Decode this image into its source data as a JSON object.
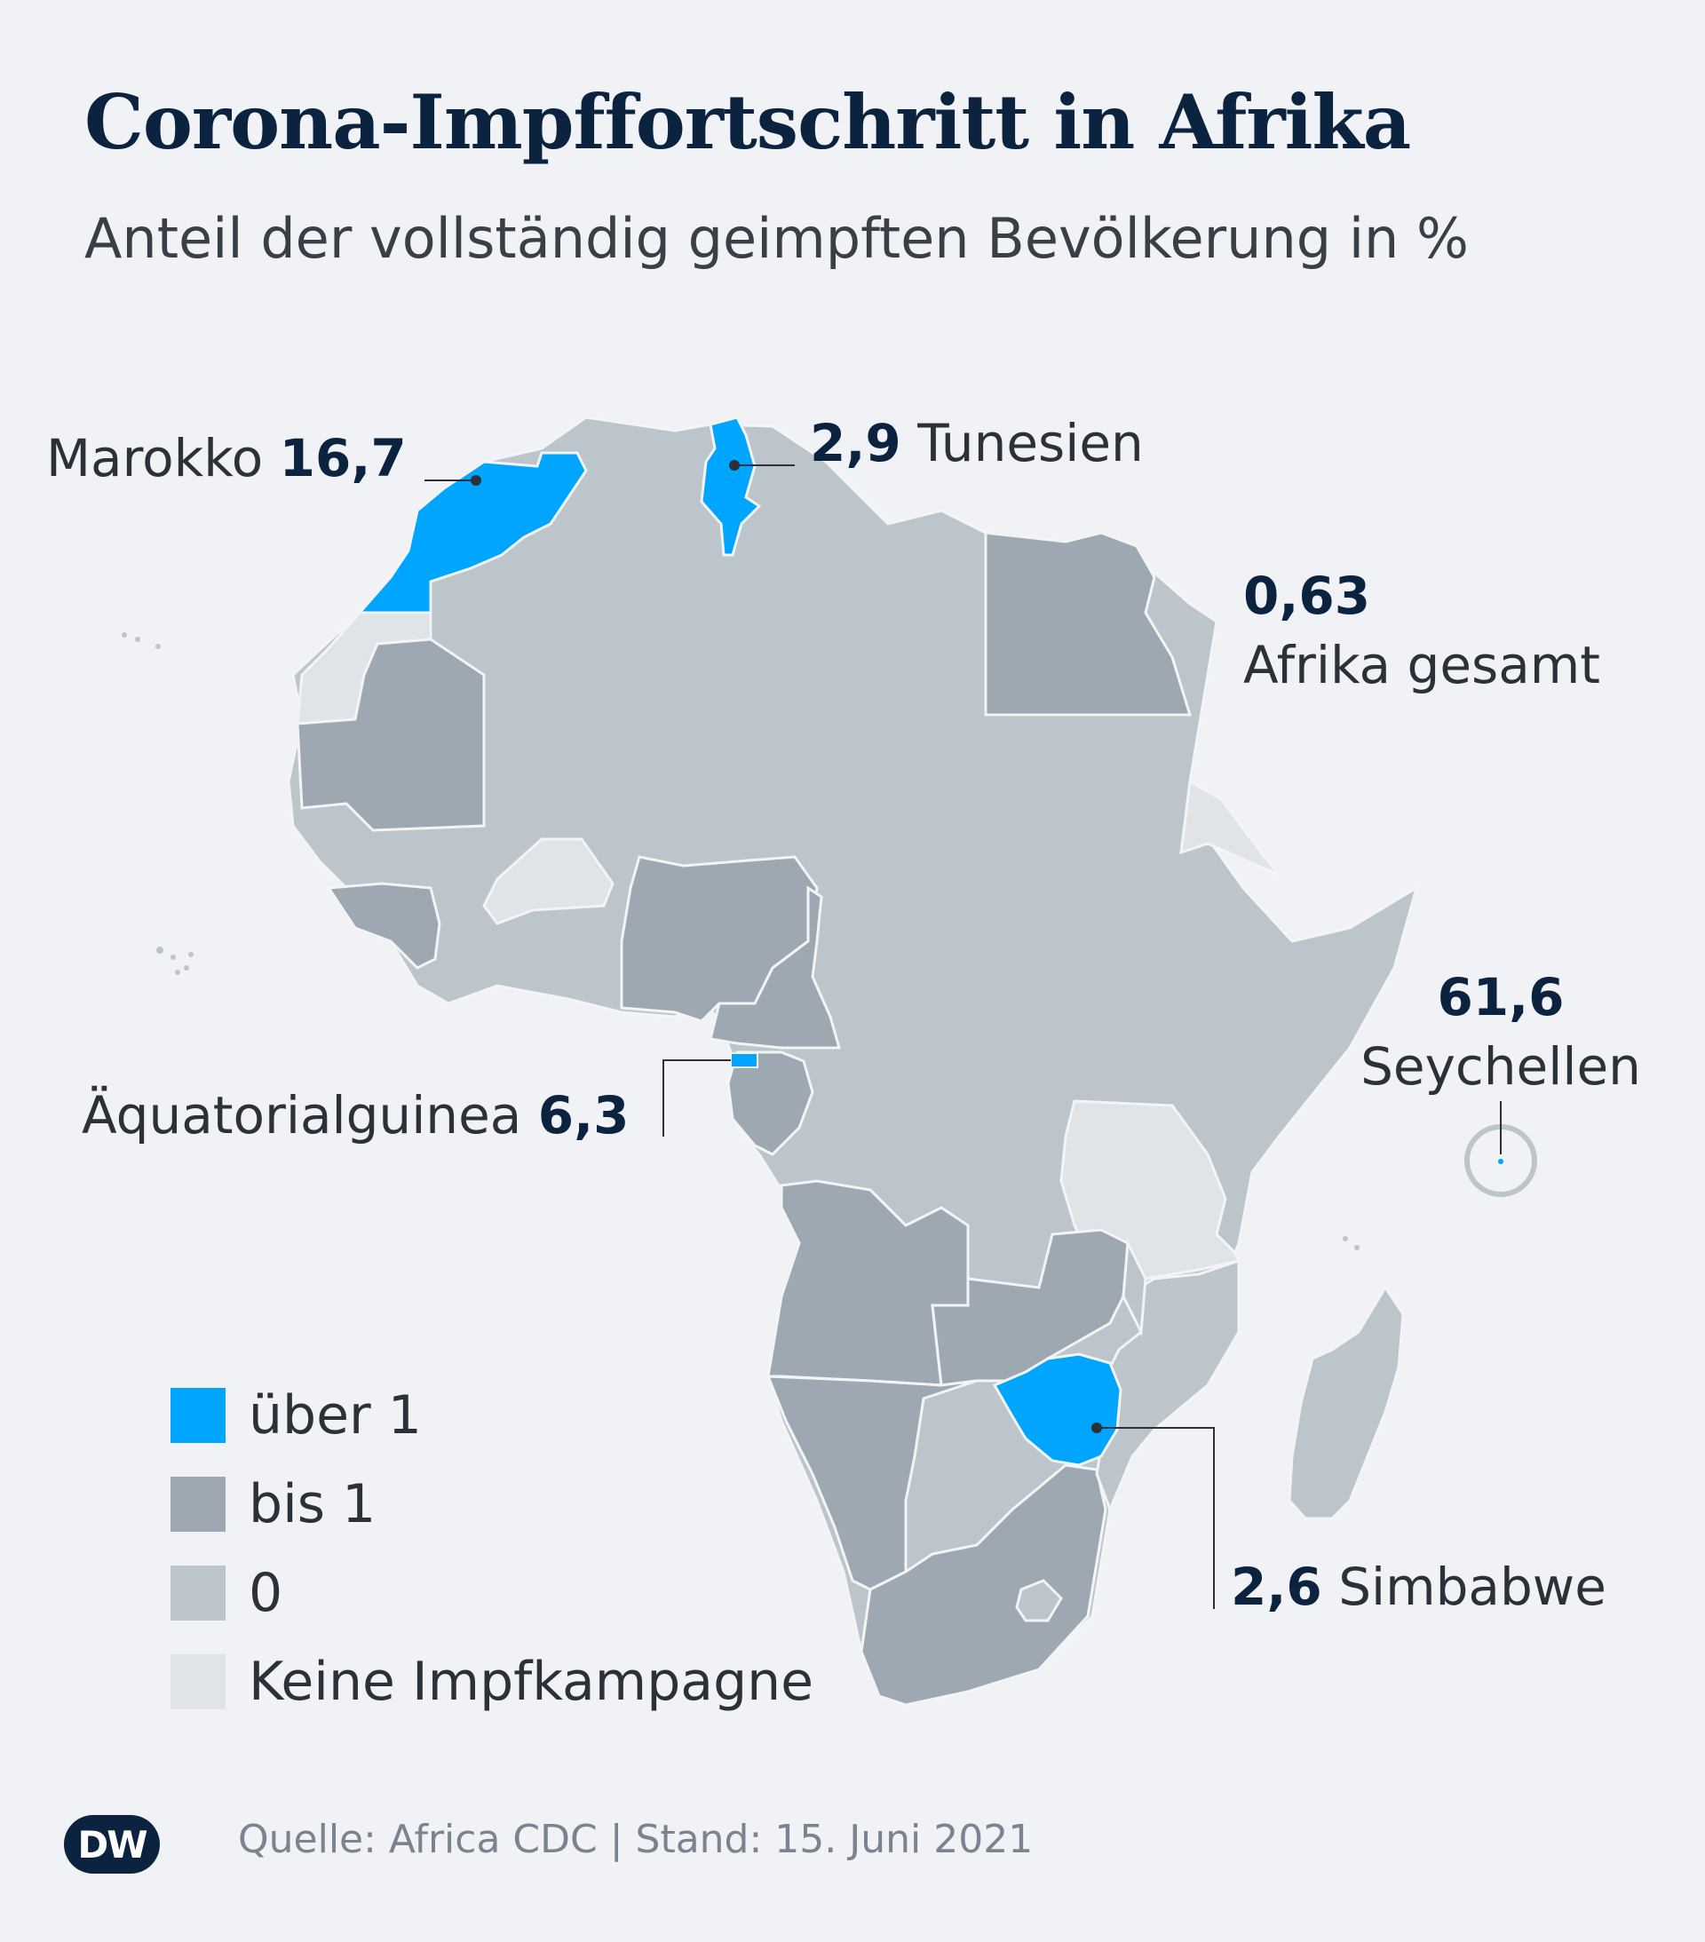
{
  "header": {
    "title": "Corona-Impffortschritt in Afrika",
    "subtitle": "Anteil der vollständig geimpften Bevölkerung in %"
  },
  "colors": {
    "ueber_1": "#00a5ff",
    "bis_1": "#9ea8b2",
    "null": "#bcc4cc",
    "keine": "#e0e3e7",
    "border": "#f2f4f6",
    "text_dark": "#0c2340"
  },
  "callouts": {
    "marokko": {
      "name": "Marokko",
      "value": "16,7"
    },
    "tunesien": {
      "value": "2,9",
      "name": "Tunesien"
    },
    "afrika": {
      "value": "0,63",
      "name": "Afrika gesamt"
    },
    "seychellen": {
      "value": "61,6",
      "name": "Seychellen"
    },
    "aequatorialguinea": {
      "name": "Äquatorialguinea",
      "value": "6,3"
    },
    "simbabwe": {
      "value": "2,6",
      "name": "Simbabwe"
    }
  },
  "legend": [
    {
      "label": "über 1",
      "color": "#00a5ff"
    },
    {
      "label": "bis 1",
      "color": "#9ea8b2"
    },
    {
      "label": "0",
      "color": "#bcc4cc"
    },
    {
      "label": "Keine Impfkampagne",
      "color": "#e0e3e7"
    }
  ],
  "footer": {
    "logo": "DW",
    "source": "Quelle: Africa CDC | Stand: 15. Juni 2021"
  }
}
